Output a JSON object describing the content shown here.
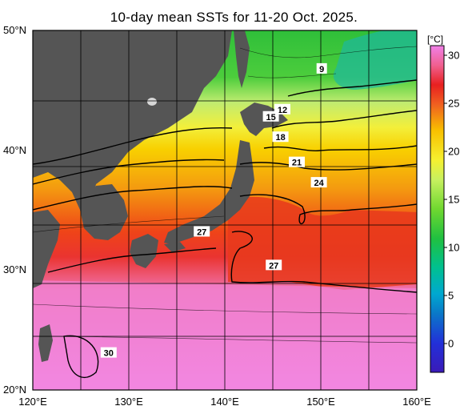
{
  "title": "10-day mean SSTs for 11-20 Oct. 2025.",
  "axes": {
    "lat_labels": [
      {
        "text": "50°N",
        "value": 50
      },
      {
        "text": "40°N",
        "value": 40
      },
      {
        "text": "30°N",
        "value": 30
      },
      {
        "text": "20°N",
        "value": 20
      }
    ],
    "lon_labels": [
      {
        "text": "120°E",
        "value": 120
      },
      {
        "text": "130°E",
        "value": 130
      },
      {
        "text": "140°E",
        "value": 140
      },
      {
        "text": "150°E",
        "value": 150
      },
      {
        "text": "160°E",
        "value": 160
      }
    ],
    "lon_range": [
      120,
      160
    ],
    "lat_range": [
      20,
      50
    ]
  },
  "colorbar": {
    "unit": "[°C]",
    "range": [
      -3,
      31
    ],
    "ticks": [
      {
        "text": "30",
        "value": 30
      },
      {
        "text": "25",
        "value": 25
      },
      {
        "text": "20",
        "value": 20
      },
      {
        "text": "15",
        "value": 15
      },
      {
        "text": "10",
        "value": 10
      },
      {
        "text": "5",
        "value": 5
      },
      {
        "text": "0",
        "value": 0
      }
    ],
    "stops": [
      {
        "t": -3,
        "color": "#3a1ab8"
      },
      {
        "t": 0,
        "color": "#2230d8"
      },
      {
        "t": 3,
        "color": "#0a78c8"
      },
      {
        "t": 5,
        "color": "#00a8d0"
      },
      {
        "t": 8,
        "color": "#00c090"
      },
      {
        "t": 11,
        "color": "#20c040"
      },
      {
        "t": 14,
        "color": "#70d830"
      },
      {
        "t": 17,
        "color": "#c8f060"
      },
      {
        "t": 19,
        "color": "#f5f030"
      },
      {
        "t": 22,
        "color": "#f8c000"
      },
      {
        "t": 25,
        "color": "#f06020"
      },
      {
        "t": 27,
        "color": "#e82020"
      },
      {
        "t": 29,
        "color": "#f06090"
      },
      {
        "t": 31,
        "color": "#f080e8"
      }
    ]
  },
  "contour_labels": [
    {
      "text": "9",
      "lon": 150.1,
      "lat": 46.8
    },
    {
      "text": "12",
      "lon": 146.0,
      "lat": 43.4
    },
    {
      "text": "15",
      "lon": 144.8,
      "lat": 42.8
    },
    {
      "text": "18",
      "lon": 145.8,
      "lat": 41.1
    },
    {
      "text": "21",
      "lon": 147.5,
      "lat": 39.0
    },
    {
      "text": "24",
      "lon": 149.8,
      "lat": 37.3
    },
    {
      "text": "27",
      "lon": 137.6,
      "lat": 33.2
    },
    {
      "text": "27",
      "lon": 145.1,
      "lat": 30.4
    },
    {
      "text": "30",
      "lon": 127.9,
      "lat": 23.1
    }
  ],
  "colors": {
    "land": "#555555",
    "grid": "#000000",
    "hokkaido_lake": "#d8d8d8"
  }
}
